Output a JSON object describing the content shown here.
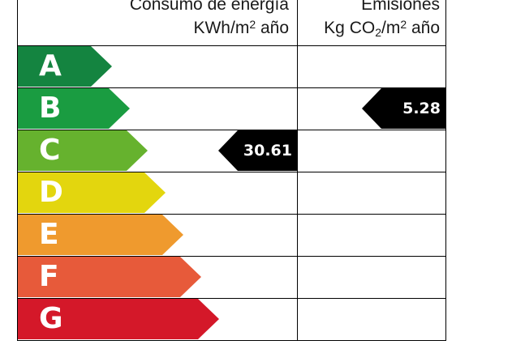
{
  "header": {
    "energy_line1": "Consumo de energía",
    "energy_unit_base": "KWh/m",
    "energy_unit_exp": "2",
    "energy_unit_suffix": " año",
    "emissions_line1": "Emisiones",
    "emissions_unit_base": "Kg CO",
    "emissions_unit_sub": "2",
    "emissions_unit_mid": "/m",
    "emissions_unit_exp": "2",
    "emissions_unit_suffix": " año"
  },
  "classes": [
    {
      "letter": "A",
      "color": "#148440"
    },
    {
      "letter": "B",
      "color": "#1a9c41"
    },
    {
      "letter": "C",
      "color": "#66b22e"
    },
    {
      "letter": "D",
      "color": "#e3d60e"
    },
    {
      "letter": "E",
      "color": "#ef9a2e"
    },
    {
      "letter": "F",
      "color": "#e75a3a"
    },
    {
      "letter": "G",
      "color": "#d41829"
    }
  ],
  "ratings": {
    "energy": {
      "class": "C",
      "value": "30.61"
    },
    "emissions": {
      "class": "B",
      "value": "5.28"
    }
  },
  "badge_color": "#000000"
}
